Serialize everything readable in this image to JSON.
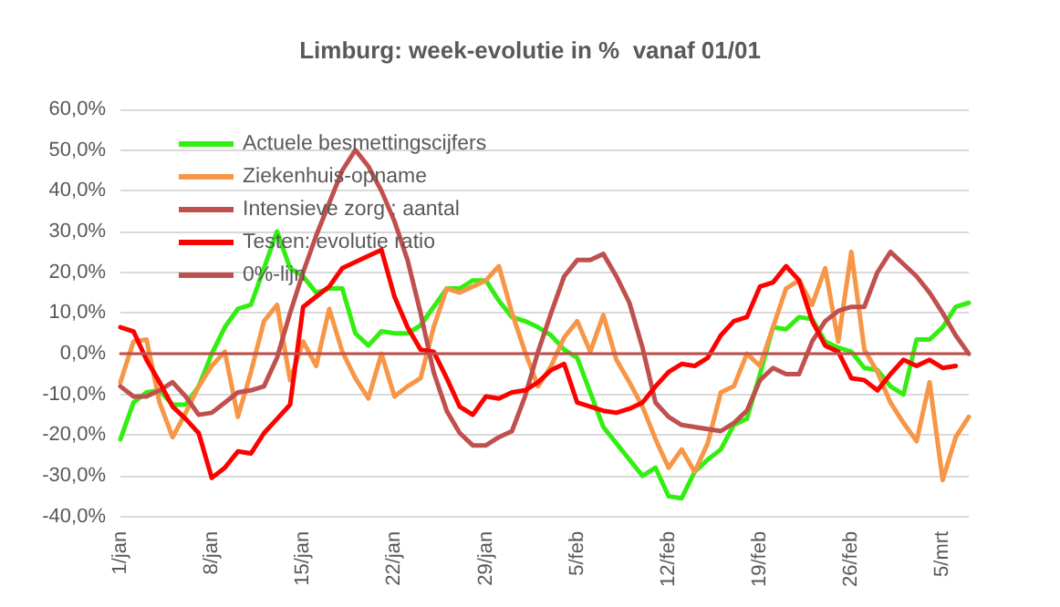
{
  "chart_data": {
    "type": "line",
    "title": "Limburg: week-evolutie in %  vanaf 01/01",
    "categories": [
      "1/jan",
      null,
      null,
      null,
      null,
      null,
      null,
      "8/jan",
      null,
      null,
      null,
      null,
      null,
      null,
      "15/jan",
      null,
      null,
      null,
      null,
      null,
      null,
      "22/jan",
      null,
      null,
      null,
      null,
      null,
      null,
      "29/jan",
      null,
      null,
      null,
      null,
      null,
      null,
      "5/feb",
      null,
      null,
      null,
      null,
      null,
      null,
      "12/feb",
      null,
      null,
      null,
      null,
      null,
      null,
      "19/feb",
      null,
      null,
      null,
      null,
      null,
      null,
      "26/feb",
      null,
      null,
      null,
      null,
      null,
      null,
      "5/mrt",
      null,
      null
    ],
    "series": [
      {
        "name": "Actuele besmettingscijfers",
        "color": "#33ee11",
        "values": [
          -21,
          -12,
          -9.5,
          -9,
          -12.5,
          -12.5,
          -8,
          0,
          6.5,
          11,
          12,
          21,
          30,
          21,
          19,
          15,
          16,
          16,
          5,
          2,
          5.5,
          5,
          5,
          7,
          11.5,
          16,
          16,
          18,
          18,
          13,
          9,
          8,
          6.5,
          4.5,
          1,
          -1,
          -9.5,
          -18,
          -22,
          -26,
          -30,
          -28,
          -35,
          -35.5,
          -29,
          -26,
          -23.5,
          -17.5,
          -16,
          -5,
          6.5,
          6,
          9,
          8.5,
          3,
          1.5,
          0.5,
          -3.5,
          -4,
          -8,
          -10,
          3.5,
          3.5,
          6.5,
          11.5,
          12.5
        ]
      },
      {
        "name": "Ziekenhuis-opname",
        "color": "#f79646",
        "values": [
          -7,
          3,
          3.5,
          -12,
          -20.5,
          -14.5,
          -8,
          -3,
          0.5,
          -15.5,
          -4.5,
          8,
          12,
          -6.5,
          3,
          -3,
          11,
          0.5,
          -6,
          -11,
          0,
          -10.5,
          -8,
          -6,
          6.5,
          16,
          15,
          16.5,
          18,
          21.5,
          10,
          0.5,
          -8,
          -3,
          4,
          8,
          0.5,
          9.5,
          -1.5,
          -7,
          -13,
          -21,
          -28,
          -23.5,
          -29,
          -22,
          -9.5,
          -8,
          0,
          -3,
          6.5,
          16,
          18,
          12,
          21,
          3,
          25,
          1,
          -4.5,
          -12,
          -17,
          -21.5,
          -7,
          -31,
          -20.5,
          -15.5
        ]
      },
      {
        "name": "Intensieve zorg : aantal",
        "color": "#c0504d",
        "values": [
          -8,
          -10.5,
          -10.5,
          -9,
          -7,
          -10.5,
          -15,
          -14.5,
          -12,
          -9.5,
          -9,
          -8,
          -1,
          10,
          20,
          29,
          37,
          45,
          50,
          46,
          40,
          32.5,
          23,
          10,
          -4.5,
          -14,
          -19.5,
          -22.5,
          -22.5,
          -20.5,
          -19,
          -10.5,
          0.5,
          10,
          19,
          23,
          23,
          24.5,
          19,
          12.5,
          1.5,
          -12,
          -15.5,
          -17.5,
          -18,
          -18.5,
          -19,
          -17,
          -14,
          -6.5,
          -3.5,
          -5,
          -5,
          3,
          8,
          10.5,
          11.5,
          11.5,
          20,
          25,
          22,
          19,
          15,
          10,
          4.5,
          0
        ]
      },
      {
        "name": "Testen: evolutie ratio",
        "color": "#ff0000",
        "values": [
          6.5,
          5.5,
          -1.5,
          -7,
          -13,
          -16,
          -19.5,
          -30.5,
          -28,
          -24,
          -24.5,
          -19.5,
          -16,
          -12.5,
          11.5,
          14,
          16.5,
          21,
          22.5,
          24,
          25.5,
          14,
          6.5,
          1,
          0.5,
          -6,
          -13,
          -15,
          -10.5,
          -11,
          -9.5,
          -9,
          -7,
          -4,
          -2.5,
          -12,
          -13,
          -14,
          -14.5,
          -13.5,
          -12,
          -8,
          -4.5,
          -2.5,
          -3,
          -1,
          4.5,
          8,
          9,
          16.5,
          17.5,
          21.5,
          18,
          8,
          2,
          0.5,
          -6,
          -6.5,
          -9,
          -5,
          -1.5,
          -3,
          -1.5,
          -3.5,
          -3,
          null
        ]
      },
      {
        "name": "0%-lijn",
        "color": "#c0504d",
        "values": [
          0,
          0,
          0,
          0,
          0,
          0,
          0,
          0,
          0,
          0,
          0,
          0,
          0,
          0,
          0,
          0,
          0,
          0,
          0,
          0,
          0,
          0,
          0,
          0,
          0,
          0,
          0,
          0,
          0,
          0,
          0,
          0,
          0,
          0,
          0,
          0,
          0,
          0,
          0,
          0,
          0,
          0,
          0,
          0,
          0,
          0,
          0,
          0,
          0,
          0,
          0,
          0,
          0,
          0,
          0,
          0,
          0,
          0,
          0,
          0,
          0,
          0,
          0,
          0,
          0,
          0
        ]
      }
    ],
    "ylim": [
      -40,
      60
    ],
    "yticks": [
      {
        "value": -40,
        "label": "-40,0%"
      },
      {
        "value": -30,
        "label": "-30,0%"
      },
      {
        "value": -20,
        "label": "-20,0%"
      },
      {
        "value": -10,
        "label": "-10,0%"
      },
      {
        "value": 0,
        "label": "0,0%"
      },
      {
        "value": 10,
        "label": "10,0%"
      },
      {
        "value": 20,
        "label": "20,0%"
      },
      {
        "value": 30,
        "label": "30,0%"
      },
      {
        "value": 40,
        "label": "40,0%"
      },
      {
        "value": 50,
        "label": "50,0%"
      },
      {
        "value": 60,
        "label": "60,0%"
      }
    ],
    "grid": "y",
    "legend": "top left"
  }
}
